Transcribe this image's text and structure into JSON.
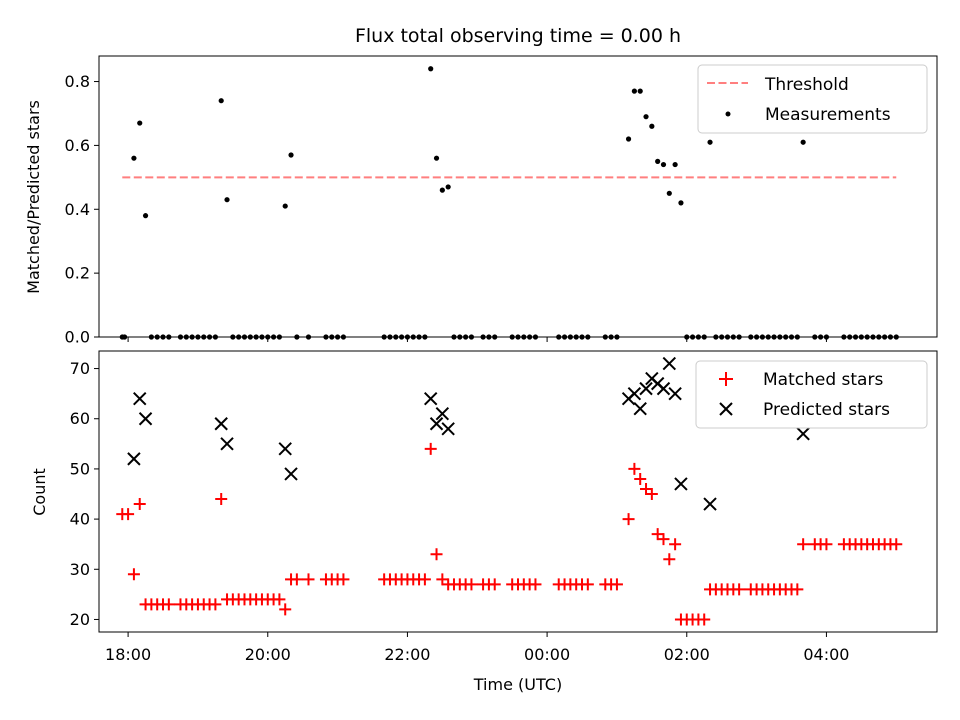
{
  "title": "Flux total observing time = 0.00 h",
  "xlabel": "Time (UTC)",
  "x_tick_labels": [
    "18:00",
    "20:00",
    "22:00",
    "00:00",
    "02:00",
    "04:00"
  ],
  "chart_data": [
    {
      "type": "scatter",
      "ylabel": "Matched/Predicted stars",
      "xlim": [
        "17:35",
        "05:35"
      ],
      "ylim": [
        0,
        0.88
      ],
      "y_ticks": [
        "0.0",
        "0.2",
        "0.4",
        "0.6",
        "0.8"
      ],
      "y_tick_values": [
        0,
        0.2,
        0.4,
        0.6,
        0.8
      ],
      "legend": {
        "position": "top-right",
        "entries": [
          "Threshold",
          "Measurements"
        ]
      },
      "threshold": {
        "name": "Threshold",
        "value": 0.5,
        "x_range": [
          "17:55",
          "05:00"
        ],
        "color": "#ff7f7f",
        "style": "dashed"
      },
      "series": [
        {
          "name": "Measurements",
          "marker": "dot",
          "color": "#000000",
          "points": [
            [
              "17:55",
              0
            ],
            [
              "17:57",
              0
            ],
            [
              "18:05",
              0.56
            ],
            [
              "18:10",
              0.67
            ],
            [
              "18:15",
              0.38
            ],
            [
              "18:20",
              0
            ],
            [
              "18:25",
              0
            ],
            [
              "18:30",
              0
            ],
            [
              "18:35",
              0
            ],
            [
              "18:45",
              0
            ],
            [
              "18:50",
              0
            ],
            [
              "18:55",
              0
            ],
            [
              "19:00",
              0
            ],
            [
              "19:05",
              0
            ],
            [
              "19:10",
              0
            ],
            [
              "19:15",
              0
            ],
            [
              "19:20",
              0.74
            ],
            [
              "19:25",
              0.43
            ],
            [
              "19:30",
              0
            ],
            [
              "19:35",
              0
            ],
            [
              "19:40",
              0
            ],
            [
              "19:45",
              0
            ],
            [
              "19:50",
              0
            ],
            [
              "19:55",
              0
            ],
            [
              "20:00",
              0
            ],
            [
              "20:05",
              0
            ],
            [
              "20:10",
              0
            ],
            [
              "20:15",
              0.41
            ],
            [
              "20:20",
              0.57
            ],
            [
              "20:25",
              0
            ],
            [
              "20:35",
              0
            ],
            [
              "20:50",
              0
            ],
            [
              "20:55",
              0
            ],
            [
              "21:00",
              0
            ],
            [
              "21:05",
              0
            ],
            [
              "21:40",
              0
            ],
            [
              "21:45",
              0
            ],
            [
              "21:50",
              0
            ],
            [
              "21:55",
              0
            ],
            [
              "22:00",
              0
            ],
            [
              "22:05",
              0
            ],
            [
              "22:10",
              0
            ],
            [
              "22:15",
              0
            ],
            [
              "22:20",
              0.84
            ],
            [
              "22:25",
              0.56
            ],
            [
              "22:30",
              0.46
            ],
            [
              "22:35",
              0.47
            ],
            [
              "22:40",
              0
            ],
            [
              "22:45",
              0
            ],
            [
              "22:50",
              0
            ],
            [
              "22:55",
              0
            ],
            [
              "23:05",
              0
            ],
            [
              "23:10",
              0
            ],
            [
              "23:15",
              0
            ],
            [
              "23:30",
              0
            ],
            [
              "23:35",
              0
            ],
            [
              "23:40",
              0
            ],
            [
              "23:45",
              0
            ],
            [
              "23:50",
              0
            ],
            [
              "00:10",
              0
            ],
            [
              "00:15",
              0
            ],
            [
              "00:20",
              0
            ],
            [
              "00:25",
              0
            ],
            [
              "00:30",
              0
            ],
            [
              "00:35",
              0
            ],
            [
              "00:50",
              0
            ],
            [
              "00:55",
              0
            ],
            [
              "01:00",
              0
            ],
            [
              "01:10",
              0.62
            ],
            [
              "01:15",
              0.77
            ],
            [
              "01:20",
              0.77
            ],
            [
              "01:25",
              0.69
            ],
            [
              "01:30",
              0.66
            ],
            [
              "01:35",
              0.55
            ],
            [
              "01:40",
              0.54
            ],
            [
              "01:45",
              0.45
            ],
            [
              "01:50",
              0.54
            ],
            [
              "01:55",
              0.42
            ],
            [
              "02:00",
              0
            ],
            [
              "02:05",
              0
            ],
            [
              "02:10",
              0
            ],
            [
              "02:15",
              0
            ],
            [
              "02:20",
              0.61
            ],
            [
              "02:25",
              0
            ],
            [
              "02:30",
              0
            ],
            [
              "02:35",
              0
            ],
            [
              "02:40",
              0
            ],
            [
              "02:45",
              0
            ],
            [
              "02:55",
              0
            ],
            [
              "03:00",
              0
            ],
            [
              "03:05",
              0
            ],
            [
              "03:10",
              0
            ],
            [
              "03:15",
              0
            ],
            [
              "03:20",
              0
            ],
            [
              "03:25",
              0
            ],
            [
              "03:30",
              0
            ],
            [
              "03:35",
              0
            ],
            [
              "03:40",
              0.61
            ],
            [
              "03:50",
              0
            ],
            [
              "03:55",
              0
            ],
            [
              "04:00",
              0
            ],
            [
              "04:15",
              0
            ],
            [
              "04:20",
              0
            ],
            [
              "04:25",
              0
            ],
            [
              "04:30",
              0
            ],
            [
              "04:35",
              0
            ],
            [
              "04:40",
              0
            ],
            [
              "04:45",
              0
            ],
            [
              "04:50",
              0
            ],
            [
              "04:55",
              0
            ],
            [
              "05:00",
              0
            ]
          ]
        }
      ]
    },
    {
      "type": "scatter",
      "ylabel": "Count",
      "xlim": [
        "17:35",
        "05:35"
      ],
      "ylim": [
        17.5,
        73.5
      ],
      "y_ticks": [
        "20",
        "30",
        "40",
        "50",
        "60",
        "70"
      ],
      "y_tick_values": [
        20,
        30,
        40,
        50,
        60,
        70
      ],
      "legend": {
        "position": "top-right",
        "entries": [
          "Matched stars",
          "Predicted stars"
        ]
      },
      "series": [
        {
          "name": "Matched stars",
          "marker": "plus",
          "color": "#ff0000",
          "points": [
            [
              "17:55",
              41
            ],
            [
              "18:00",
              41
            ],
            [
              "18:05",
              29
            ],
            [
              "18:10",
              43
            ],
            [
              "18:15",
              23
            ],
            [
              "18:20",
              23
            ],
            [
              "18:25",
              23
            ],
            [
              "18:30",
              23
            ],
            [
              "18:35",
              23
            ],
            [
              "18:45",
              23
            ],
            [
              "18:50",
              23
            ],
            [
              "18:55",
              23
            ],
            [
              "19:00",
              23
            ],
            [
              "19:05",
              23
            ],
            [
              "19:10",
              23
            ],
            [
              "19:15",
              23
            ],
            [
              "19:20",
              44
            ],
            [
              "19:25",
              24
            ],
            [
              "19:30",
              24
            ],
            [
              "19:35",
              24
            ],
            [
              "19:40",
              24
            ],
            [
              "19:45",
              24
            ],
            [
              "19:50",
              24
            ],
            [
              "19:55",
              24
            ],
            [
              "20:00",
              24
            ],
            [
              "20:05",
              24
            ],
            [
              "20:10",
              24
            ],
            [
              "20:15",
              22
            ],
            [
              "20:20",
              28
            ],
            [
              "20:25",
              28
            ],
            [
              "20:35",
              28
            ],
            [
              "20:50",
              28
            ],
            [
              "20:55",
              28
            ],
            [
              "21:00",
              28
            ],
            [
              "21:05",
              28
            ],
            [
              "21:40",
              28
            ],
            [
              "21:45",
              28
            ],
            [
              "21:50",
              28
            ],
            [
              "21:55",
              28
            ],
            [
              "22:00",
              28
            ],
            [
              "22:05",
              28
            ],
            [
              "22:10",
              28
            ],
            [
              "22:15",
              28
            ],
            [
              "22:20",
              54
            ],
            [
              "22:25",
              33
            ],
            [
              "22:30",
              28
            ],
            [
              "22:35",
              27
            ],
            [
              "22:40",
              27
            ],
            [
              "22:45",
              27
            ],
            [
              "22:50",
              27
            ],
            [
              "22:55",
              27
            ],
            [
              "23:05",
              27
            ],
            [
              "23:10",
              27
            ],
            [
              "23:15",
              27
            ],
            [
              "23:30",
              27
            ],
            [
              "23:35",
              27
            ],
            [
              "23:40",
              27
            ],
            [
              "23:45",
              27
            ],
            [
              "23:50",
              27
            ],
            [
              "00:10",
              27
            ],
            [
              "00:15",
              27
            ],
            [
              "00:20",
              27
            ],
            [
              "00:25",
              27
            ],
            [
              "00:30",
              27
            ],
            [
              "00:35",
              27
            ],
            [
              "00:50",
              27
            ],
            [
              "00:55",
              27
            ],
            [
              "01:00",
              27
            ],
            [
              "01:10",
              40
            ],
            [
              "01:15",
              50
            ],
            [
              "01:20",
              48
            ],
            [
              "01:25",
              46
            ],
            [
              "01:30",
              45
            ],
            [
              "01:35",
              37
            ],
            [
              "01:40",
              36
            ],
            [
              "01:45",
              32
            ],
            [
              "01:50",
              35
            ],
            [
              "01:55",
              20
            ],
            [
              "02:00",
              20
            ],
            [
              "02:05",
              20
            ],
            [
              "02:10",
              20
            ],
            [
              "02:15",
              20
            ],
            [
              "02:20",
              26
            ],
            [
              "02:25",
              26
            ],
            [
              "02:30",
              26
            ],
            [
              "02:35",
              26
            ],
            [
              "02:40",
              26
            ],
            [
              "02:45",
              26
            ],
            [
              "02:55",
              26
            ],
            [
              "03:00",
              26
            ],
            [
              "03:05",
              26
            ],
            [
              "03:10",
              26
            ],
            [
              "03:15",
              26
            ],
            [
              "03:20",
              26
            ],
            [
              "03:25",
              26
            ],
            [
              "03:30",
              26
            ],
            [
              "03:35",
              26
            ],
            [
              "03:40",
              35
            ],
            [
              "03:50",
              35
            ],
            [
              "03:55",
              35
            ],
            [
              "04:00",
              35
            ],
            [
              "04:15",
              35
            ],
            [
              "04:20",
              35
            ],
            [
              "04:25",
              35
            ],
            [
              "04:30",
              35
            ],
            [
              "04:35",
              35
            ],
            [
              "04:40",
              35
            ],
            [
              "04:45",
              35
            ],
            [
              "04:50",
              35
            ],
            [
              "04:55",
              35
            ],
            [
              "05:00",
              35
            ]
          ]
        },
        {
          "name": "Predicted stars",
          "marker": "x",
          "color": "#000000",
          "points": [
            [
              "18:05",
              52
            ],
            [
              "18:10",
              64
            ],
            [
              "18:15",
              60
            ],
            [
              "19:20",
              59
            ],
            [
              "19:25",
              55
            ],
            [
              "20:15",
              54
            ],
            [
              "20:20",
              49
            ],
            [
              "22:20",
              64
            ],
            [
              "22:25",
              59
            ],
            [
              "22:30",
              61
            ],
            [
              "22:35",
              58
            ],
            [
              "01:10",
              64
            ],
            [
              "01:15",
              65
            ],
            [
              "01:20",
              62
            ],
            [
              "01:25",
              66
            ],
            [
              "01:30",
              68
            ],
            [
              "01:35",
              67
            ],
            [
              "01:40",
              66
            ],
            [
              "01:45",
              71
            ],
            [
              "01:50",
              65
            ],
            [
              "01:55",
              47
            ],
            [
              "02:20",
              43
            ],
            [
              "03:40",
              57
            ]
          ]
        }
      ]
    }
  ]
}
